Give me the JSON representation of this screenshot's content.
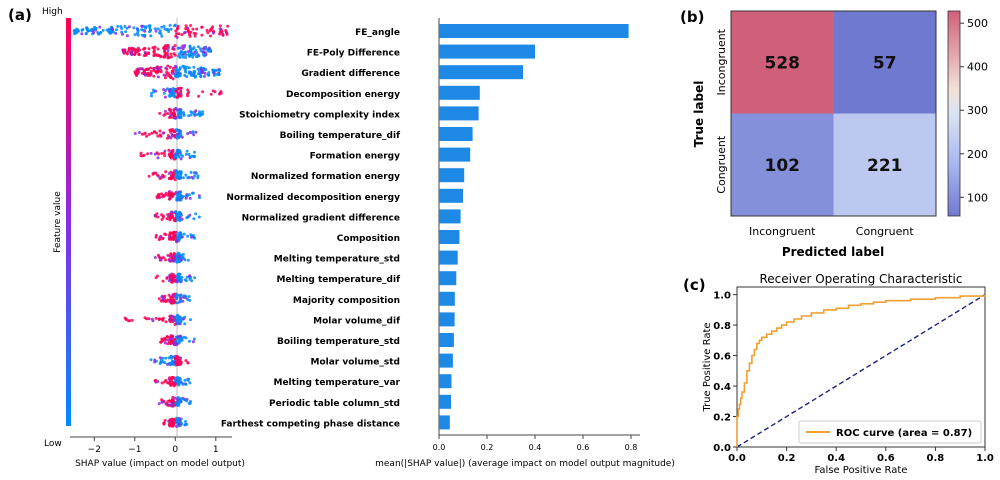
{
  "panels": {
    "a": "(a)",
    "b": "(b)",
    "c": "(c)"
  },
  "colors": {
    "shap_high": "#ff0052",
    "shap_low": "#008bfb",
    "bar": "#1e88e5",
    "cm_high": "#d8717f",
    "cm_low": "#8392d9",
    "roc": "#f0a030",
    "diag": "#1a237e"
  },
  "chart_data": [
    {
      "type": "scatter",
      "name": "beeswarm",
      "xlabel": "SHAP value (impact on model output)",
      "x_ticks": [
        -2,
        -1,
        0,
        1
      ],
      "xlim": [
        -2.6,
        1.4
      ],
      "colorbar": {
        "label": "Feature value",
        "high": "High",
        "low": "Low"
      },
      "features": [
        {
          "name": "FE_angle",
          "min": -2.5,
          "max": 1.3,
          "hl": "pos"
        },
        {
          "name": "FE-Poly Difference",
          "min": -1.3,
          "max": 0.9,
          "hl": "neg"
        },
        {
          "name": "Gradient difference",
          "min": -1.0,
          "max": 1.1,
          "hl": "neg"
        },
        {
          "name": "Decomposition energy",
          "min": -0.6,
          "max": 1.2,
          "hl": "pos"
        },
        {
          "name": "Stoichiometry complexity index",
          "min": -0.4,
          "max": 0.7,
          "hl": "neg"
        },
        {
          "name": "Boiling temperature_dif",
          "min": -1.0,
          "max": 0.6,
          "hl": "neg"
        },
        {
          "name": "Formation energy",
          "min": -0.9,
          "max": 0.5,
          "hl": "neg"
        },
        {
          "name": "Normalized formation energy",
          "min": -0.7,
          "max": 0.6,
          "hl": "neg"
        },
        {
          "name": "Normalized decomposition energy",
          "min": -0.5,
          "max": 0.6,
          "hl": "neg"
        },
        {
          "name": "Normalized gradient difference",
          "min": -0.5,
          "max": 0.6,
          "hl": "neg"
        },
        {
          "name": "Composition",
          "min": -0.5,
          "max": 0.5,
          "hl": "neg"
        },
        {
          "name": "Melting temperature_std",
          "min": -0.5,
          "max": 0.5,
          "hl": "neg"
        },
        {
          "name": "Melting temperature_dif",
          "min": -0.5,
          "max": 0.5,
          "hl": "neg"
        },
        {
          "name": "Majority composition",
          "min": -0.4,
          "max": 0.4,
          "hl": "neg"
        },
        {
          "name": "Molar volume_dif",
          "min": -1.4,
          "max": 0.4,
          "hl": "neg"
        },
        {
          "name": "Boiling temperature_std",
          "min": -0.4,
          "max": 0.5,
          "hl": "neg"
        },
        {
          "name": "Molar volume_std",
          "min": -0.6,
          "max": 0.4,
          "hl": "pos"
        },
        {
          "name": "Melting temperature_var",
          "min": -0.5,
          "max": 0.4,
          "hl": "neg"
        },
        {
          "name": "Periodic table column_std",
          "min": -0.4,
          "max": 0.4,
          "hl": "neg"
        },
        {
          "name": "Farthest competing phase distance",
          "min": -0.3,
          "max": 0.3,
          "hl": "neg"
        }
      ]
    },
    {
      "type": "bar",
      "name": "importance",
      "xlabel": "mean(|SHAP value|) (average impact on model output magnitude)",
      "xlim": [
        0,
        0.8
      ],
      "x_ticks": [
        0.0,
        0.2,
        0.4,
        0.6,
        0.8
      ],
      "categories": [
        "FE_angle",
        "FE-Poly Difference",
        "Gradient difference",
        "Decomposition energy",
        "Stoichiometry complexity index",
        "Boiling temperature_dif",
        "Formation energy",
        "Normalized formation energy",
        "Normalized decomposition energy",
        "Normalized gradient difference",
        "Composition",
        "Melting temperature_std",
        "Melting temperature_dif",
        "Majority composition",
        "Molar volume_dif",
        "Boiling temperature_std",
        "Molar volume_std",
        "Melting temperature_var",
        "Periodic table column_std",
        "Farthest competing phase distance"
      ],
      "values": [
        0.79,
        0.4,
        0.35,
        0.17,
        0.165,
        0.14,
        0.13,
        0.105,
        0.1,
        0.09,
        0.085,
        0.078,
        0.072,
        0.066,
        0.065,
        0.062,
        0.058,
        0.052,
        0.05,
        0.045
      ]
    },
    {
      "type": "heatmap",
      "name": "confusion",
      "xlabel": "Predicted label",
      "ylabel": "True label",
      "categories": [
        "Incongruent",
        "Congruent"
      ],
      "values": [
        [
          528,
          57
        ],
        [
          102,
          221
        ]
      ],
      "colorbar_ticks": [
        100,
        200,
        300,
        400,
        500
      ],
      "vmin": 57,
      "vmax": 528
    },
    {
      "type": "line",
      "name": "roc",
      "title": "Receiver Operating Characteristic",
      "xlabel": "False Positive Rate",
      "ylabel": "True Positive Rate",
      "xlim": [
        0,
        1
      ],
      "ylim": [
        0,
        1.05
      ],
      "ticks": [
        0.0,
        0.2,
        0.4,
        0.6,
        0.8,
        1.0
      ],
      "series": [
        {
          "name": "ROC curve (area = 0.87)",
          "x": [
            0,
            0,
            0.005,
            0.01,
            0.015,
            0.02,
            0.03,
            0.04,
            0.05,
            0.06,
            0.07,
            0.08,
            0.09,
            0.1,
            0.12,
            0.14,
            0.16,
            0.18,
            0.2,
            0.23,
            0.26,
            0.3,
            0.35,
            0.4,
            0.45,
            0.5,
            0.55,
            0.6,
            0.7,
            0.8,
            0.9,
            1.0
          ],
          "y": [
            0,
            0.2,
            0.25,
            0.28,
            0.32,
            0.36,
            0.42,
            0.5,
            0.55,
            0.6,
            0.64,
            0.68,
            0.7,
            0.72,
            0.74,
            0.76,
            0.78,
            0.8,
            0.82,
            0.84,
            0.86,
            0.88,
            0.9,
            0.91,
            0.93,
            0.94,
            0.95,
            0.96,
            0.97,
            0.98,
            0.99,
            1.0
          ]
        }
      ],
      "diagonal": true,
      "legend": "lower-right"
    }
  ]
}
